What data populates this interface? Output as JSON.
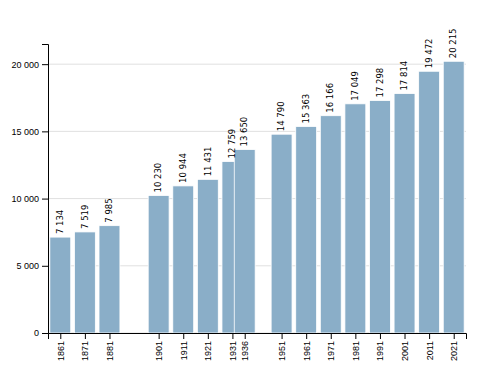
{
  "chart_data": {
    "type": "bar",
    "x": [
      1861,
      1871,
      1881,
      1901,
      1911,
      1921,
      1931,
      1936,
      1951,
      1961,
      1971,
      1981,
      1991,
      2001,
      2011,
      2021
    ],
    "values": [
      7134,
      7519,
      7985,
      10230,
      10944,
      11431,
      12759,
      13650,
      14790,
      15363,
      16166,
      17049,
      17298,
      17814,
      19472,
      20215
    ],
    "value_labels": [
      "7 134",
      "7 519",
      "7 985",
      "10 230",
      "10 944",
      "11 431",
      "12 759",
      "13 650",
      "14 790",
      "15 363",
      "16 166",
      "17 049",
      "17 298",
      "17 814",
      "19 472",
      "20 215"
    ],
    "data_labels": true,
    "color": "#8aaec8",
    "xlim": [
      1856,
      2026
    ],
    "xticks": [
      1861,
      1871,
      1881,
      1901,
      1911,
      1921,
      1931,
      1936,
      1951,
      1961,
      1971,
      1981,
      1991,
      2001,
      2011,
      2021
    ],
    "ylim": [
      0,
      21500
    ],
    "yticks": [
      0,
      {
        "value": 5000,
        "label": "5 000"
      },
      {
        "value": 10000,
        "label": "10 000"
      },
      {
        "value": 15000,
        "label": "15 000"
      },
      {
        "value": 20000,
        "label": "20 000"
      }
    ],
    "grid": true
  }
}
